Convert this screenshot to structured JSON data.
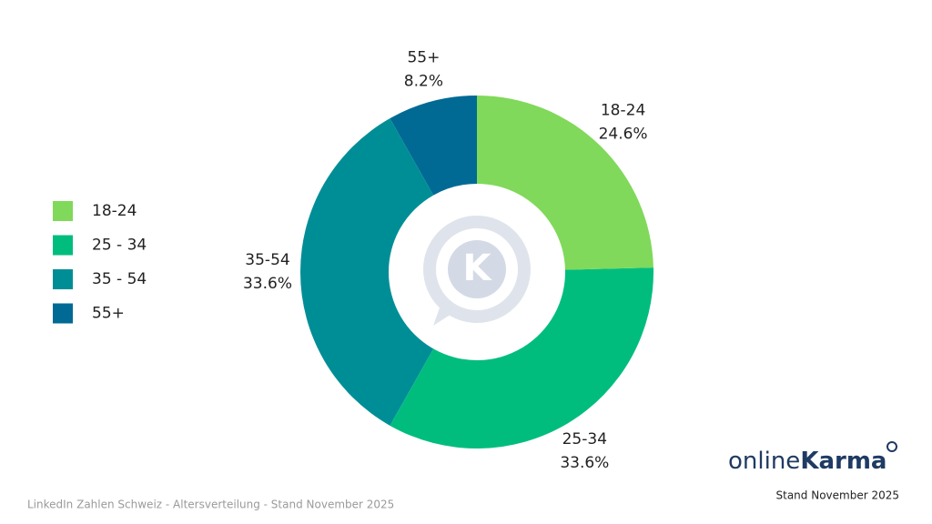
{
  "chart_data": {
    "type": "donut",
    "categories": [
      "18-24",
      "25-34",
      "35-54",
      "55+"
    ],
    "legend_labels": [
      "18-24",
      "25 - 34",
      "35 - 54",
      "55+"
    ],
    "values": [
      24.6,
      33.6,
      33.6,
      8.2
    ],
    "value_labels": [
      "24.6%",
      "33.6%",
      "33.6%",
      "8.2%"
    ],
    "colors": [
      "#80d95a",
      "#00bd7e",
      "#008e96",
      "#006a94"
    ],
    "center_icon_letter": "K"
  },
  "footer": {
    "caption": "LinkedIn Zahlen Schweiz - Altersverteilung - Stand November 2025",
    "date": "Stand November 2025"
  },
  "logo": {
    "prefix": "online",
    "suffix": "Karma"
  }
}
